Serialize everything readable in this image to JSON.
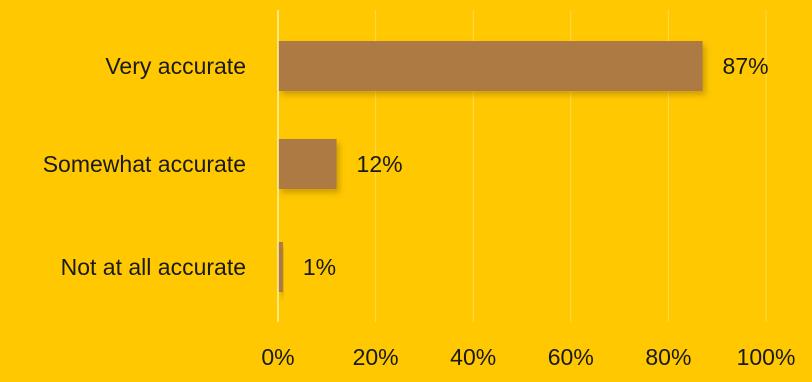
{
  "chart_data": {
    "type": "bar",
    "orientation": "horizontal",
    "categories": [
      "Very accurate",
      "Somewhat accurate",
      "Not at all accurate"
    ],
    "values": [
      87,
      12,
      1
    ],
    "value_labels": [
      "87%",
      "12%",
      "1%"
    ],
    "xlim": [
      0,
      100
    ],
    "x_ticks": [
      0,
      20,
      40,
      60,
      80,
      100
    ],
    "x_tick_labels": [
      "0%",
      "20%",
      "40%",
      "60%",
      "80%",
      "100%"
    ],
    "grid": true,
    "legend": "none",
    "title": "",
    "xlabel": "",
    "ylabel": ""
  },
  "colors": {
    "background": "#FFC800",
    "bar": "#AC7A42",
    "gridline": "#FFD94D",
    "axis": "#FFF2B0",
    "text": "#1a1a1a"
  }
}
